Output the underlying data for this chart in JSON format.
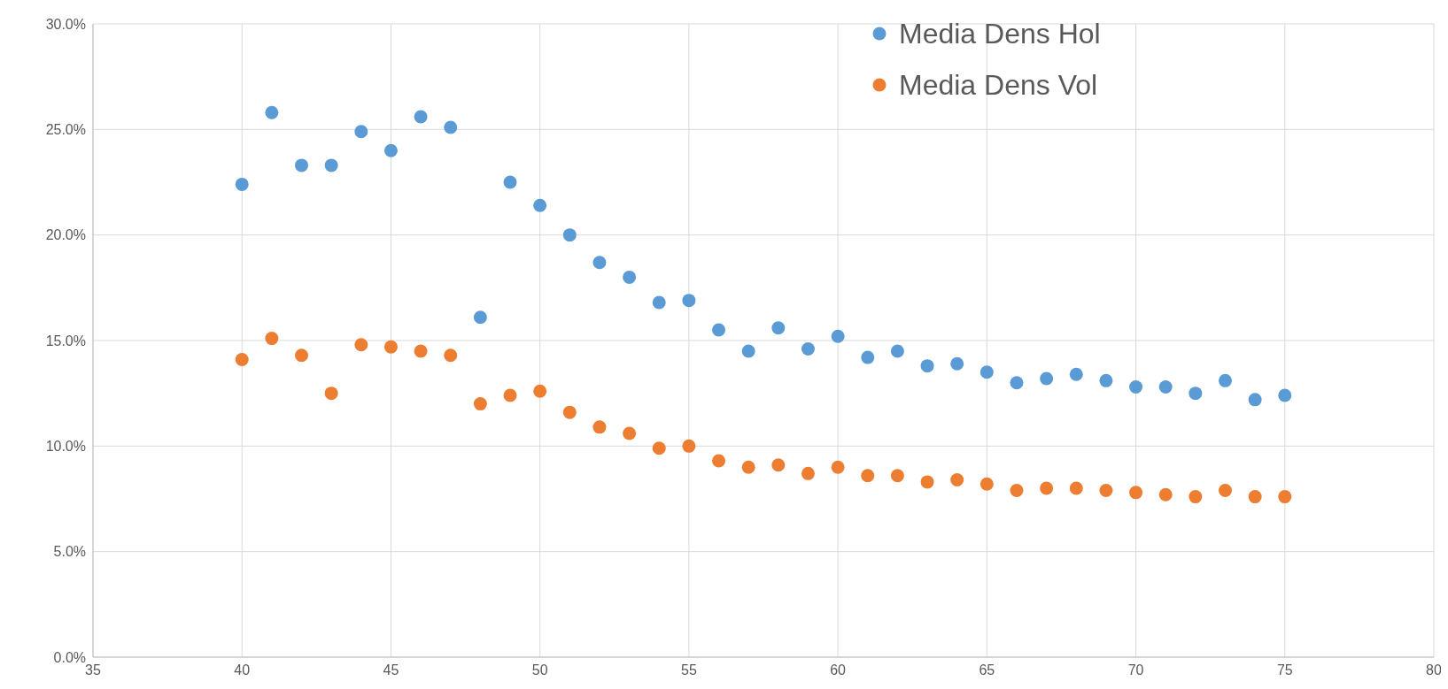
{
  "chart_data": {
    "type": "scatter",
    "x": [
      40,
      41,
      42,
      43,
      44,
      45,
      46,
      47,
      48,
      49,
      50,
      51,
      52,
      53,
      54,
      55,
      56,
      57,
      58,
      59,
      60,
      61,
      62,
      63,
      64,
      65,
      66,
      67,
      68,
      69,
      70,
      71,
      72,
      73,
      74,
      75
    ],
    "series": [
      {
        "name": "Media Dens Hol",
        "color": "#5b9bd5",
        "values": [
          22.4,
          25.8,
          23.3,
          23.3,
          24.9,
          24.0,
          25.6,
          25.1,
          16.1,
          22.5,
          21.4,
          20.0,
          18.7,
          18.0,
          16.8,
          16.9,
          15.5,
          14.5,
          15.6,
          14.6,
          15.2,
          14.2,
          14.5,
          13.8,
          13.9,
          13.5,
          13.0,
          13.2,
          13.4,
          13.1,
          12.8,
          12.8,
          12.5,
          13.1,
          12.2,
          12.4
        ]
      },
      {
        "name": "Media Dens Vol",
        "color": "#ed7d31",
        "values": [
          14.1,
          15.1,
          14.3,
          12.5,
          14.8,
          14.7,
          14.5,
          14.3,
          12.0,
          12.4,
          12.6,
          11.6,
          10.9,
          10.6,
          9.9,
          10.0,
          9.3,
          9.0,
          9.1,
          8.7,
          9.0,
          8.6,
          8.6,
          8.3,
          8.4,
          8.2,
          7.9,
          8.0,
          8.0,
          7.9,
          7.8,
          7.7,
          7.6,
          7.9,
          7.6,
          7.6
        ]
      }
    ],
    "xlim": [
      35,
      80
    ],
    "xticks": [
      35,
      40,
      45,
      50,
      55,
      60,
      65,
      70,
      75,
      80
    ],
    "ylim": [
      0,
      30
    ],
    "yticks": [
      {
        "value": 0,
        "label": "0.0%"
      },
      {
        "value": 5,
        "label": "5.0%"
      },
      {
        "value": 10,
        "label": "10.0%"
      },
      {
        "value": 15,
        "label": "15.0%"
      },
      {
        "value": 20,
        "label": "20.0%"
      },
      {
        "value": 25,
        "label": "25.0%"
      },
      {
        "value": 30,
        "label": "30.0%"
      }
    ],
    "grid": true,
    "legend": "top right",
    "marker": "circle"
  }
}
